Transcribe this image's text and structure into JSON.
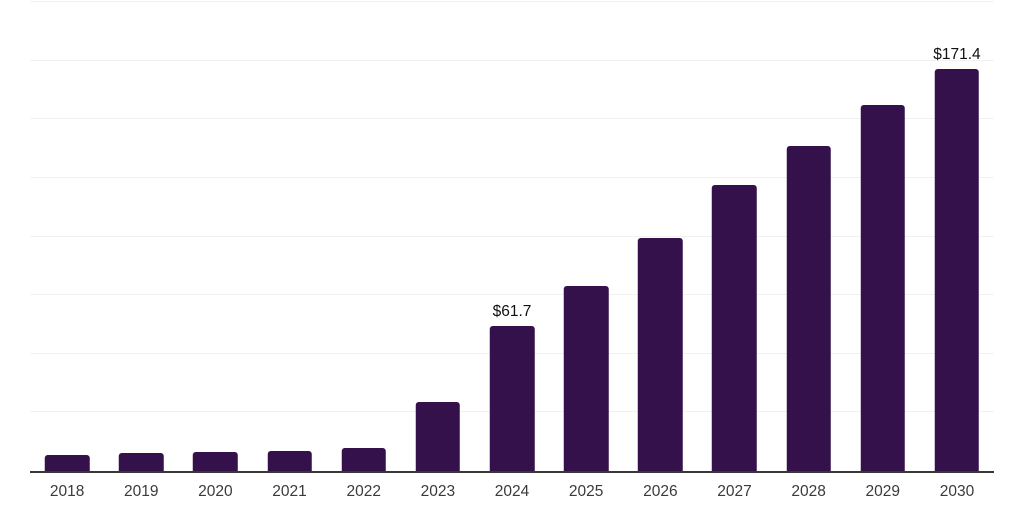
{
  "chart_data": {
    "type": "bar",
    "title": "",
    "xlabel": "",
    "ylabel": "",
    "categories": [
      "2018",
      "2019",
      "2020",
      "2021",
      "2022",
      "2023",
      "2024",
      "2025",
      "2026",
      "2027",
      "2028",
      "2029",
      "2030"
    ],
    "values": [
      6.8,
      7.7,
      7.9,
      8.7,
      9.8,
      29.3,
      61.7,
      79.0,
      99.2,
      122.1,
      138.6,
      156.0,
      171.4
    ],
    "data_labels": [
      "",
      "",
      "",
      "",
      "",
      "",
      "$61.7",
      "",
      "",
      "",
      "",
      "",
      "$171.4"
    ],
    "ylim": [
      0,
      200
    ],
    "gridline_step": 25,
    "grid": "horizontal-only",
    "y_tick_labels_visible": false,
    "legend": "none",
    "colors": {
      "bar": "#35114B",
      "axis_line": "#383838",
      "gridline": "#f1f1f1",
      "x_tick_label": "#3a3a3a",
      "data_label": "#111111",
      "background": "#ffffff"
    }
  }
}
